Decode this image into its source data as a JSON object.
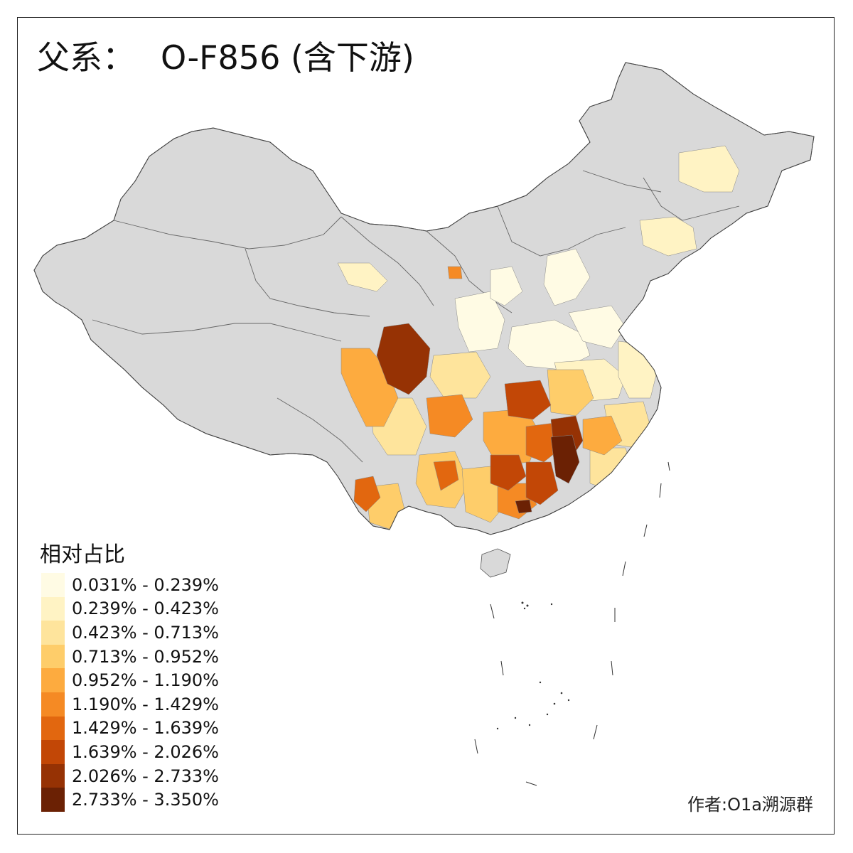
{
  "title": {
    "prefix": "父系：",
    "haplogroup": "O-F856 (含下游)"
  },
  "legend": {
    "title": "相对占比",
    "classes": [
      {
        "label": "0.031% - 0.239%",
        "color": "#fffbe4"
      },
      {
        "label": "0.239% - 0.423%",
        "color": "#fff3c4"
      },
      {
        "label": "0.423% - 0.713%",
        "color": "#fee49c"
      },
      {
        "label": "0.713% - 0.952%",
        "color": "#fecd6a"
      },
      {
        "label": "0.952% - 1.190%",
        "color": "#fdab3f"
      },
      {
        "label": "1.190% - 1.429%",
        "color": "#f58a24"
      },
      {
        "label": "1.429% - 1.639%",
        "color": "#e2670f"
      },
      {
        "label": "1.639% - 2.026%",
        "color": "#c24706"
      },
      {
        "label": "2.026% - 2.733%",
        "color": "#963204"
      },
      {
        "label": "2.733% - 3.350%",
        "color": "#6b2104"
      }
    ]
  },
  "no_data_color": "#d9d9d9",
  "credit": "作者:O1a溯源群"
}
